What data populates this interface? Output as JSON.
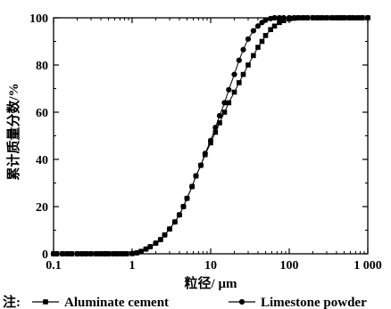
{
  "chart_data": {
    "type": "line",
    "xscale": "log",
    "xlabel": "粒径/ μm",
    "ylabel": "累计质量分数/%",
    "xlim": [
      0.1,
      1000
    ],
    "ylim": [
      0,
      100
    ],
    "x_tick_labels": [
      "0.1",
      "1",
      "10",
      "100",
      "1 000"
    ],
    "y_tick_labels": [
      "0",
      "20",
      "40",
      "60",
      "80",
      "100"
    ],
    "grid": false,
    "legend": {
      "prefix": "注:",
      "placement": "bottom",
      "entries": [
        "Aluminate cement",
        "Limestone powder"
      ]
    },
    "series": [
      {
        "name": "Aluminate cement",
        "marker": "square",
        "color": "#000000",
        "x": [
          0.1,
          0.11,
          0.13,
          0.15,
          0.17,
          0.2,
          0.23,
          0.26,
          0.3,
          0.35,
          0.4,
          0.45,
          0.5,
          0.58,
          0.65,
          0.75,
          0.85,
          1.0,
          1.15,
          1.3,
          1.5,
          1.7,
          2.0,
          2.3,
          2.6,
          3.0,
          3.5,
          4.0,
          4.5,
          5.0,
          5.8,
          6.5,
          7.5,
          8.5,
          10,
          11.5,
          13,
          15,
          17,
          20,
          23,
          26,
          30,
          35,
          40,
          45,
          50,
          58,
          65,
          75,
          85,
          100,
          115,
          130,
          150,
          170,
          200,
          230,
          260,
          300,
          350,
          400,
          450,
          500,
          580,
          650,
          750,
          850,
          1000
        ],
        "y": [
          0,
          0,
          0,
          0,
          0,
          0,
          0,
          0,
          0,
          0,
          0,
          0,
          0,
          0,
          0,
          0,
          0,
          0.1,
          0.4,
          1,
          2,
          3,
          4.5,
          6,
          8,
          10.5,
          13.5,
          16.5,
          20,
          23.5,
          28.5,
          33,
          37.5,
          42,
          47,
          51.5,
          55.5,
          60,
          64,
          68.5,
          72.5,
          76,
          80,
          84,
          87.5,
          90,
          92.5,
          95,
          96.5,
          98,
          98.8,
          99.5,
          99.8,
          100,
          100,
          100,
          100,
          100,
          100,
          100,
          100,
          100,
          100,
          100,
          100,
          100,
          100,
          100,
          100
        ]
      },
      {
        "name": "Limestone powder",
        "marker": "circle",
        "color": "#000000",
        "x": [
          0.1,
          0.11,
          0.13,
          0.15,
          0.17,
          0.2,
          0.23,
          0.26,
          0.3,
          0.35,
          0.4,
          0.45,
          0.5,
          0.58,
          0.65,
          0.75,
          0.85,
          1.0,
          1.15,
          1.3,
          1.5,
          1.7,
          2.0,
          2.3,
          2.6,
          3.0,
          3.5,
          4.0,
          4.5,
          5.0,
          5.8,
          6.5,
          7.5,
          8.5,
          10,
          11.5,
          13,
          15,
          17,
          20,
          23,
          26,
          30,
          35,
          40,
          45,
          50,
          58,
          65,
          75,
          85,
          100,
          115,
          130,
          150,
          170,
          200,
          230,
          260,
          300,
          350,
          400,
          450,
          500,
          580,
          650,
          750,
          850,
          1000
        ],
        "y": [
          0,
          0,
          0,
          0,
          0,
          0,
          0,
          0,
          0,
          0,
          0,
          0,
          0,
          0,
          0,
          0,
          0,
          0.1,
          0.4,
          1,
          2,
          3,
          4.5,
          6,
          8,
          10.5,
          13.5,
          16.5,
          20,
          23.5,
          28.5,
          33,
          37.5,
          42.5,
          48,
          53.5,
          58.5,
          64,
          69.5,
          76,
          82,
          86.5,
          91,
          94.5,
          96.5,
          98,
          99,
          99.7,
          100,
          100,
          100,
          100,
          100,
          100,
          100,
          100,
          100,
          100,
          100,
          100,
          100,
          100,
          100,
          100,
          100,
          100,
          100,
          100,
          100
        ]
      }
    ]
  }
}
